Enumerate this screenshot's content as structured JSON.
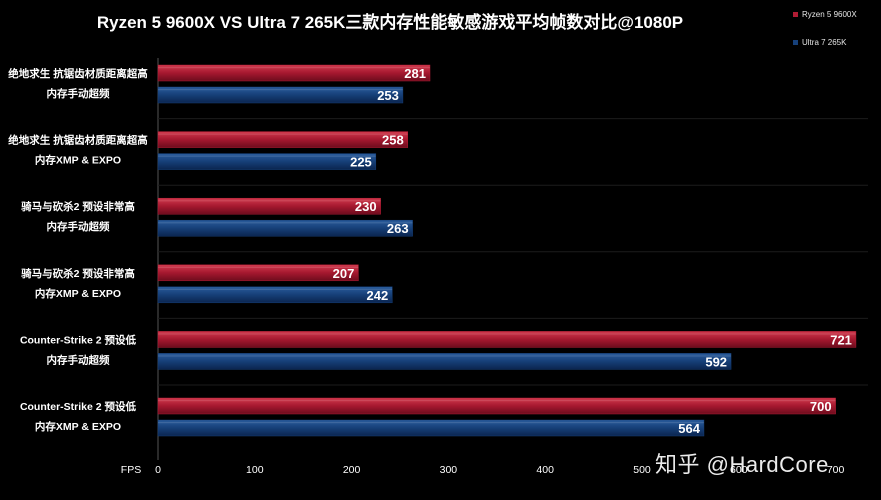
{
  "colors": {
    "series1": "#b01c34",
    "series2": "#16407a",
    "background": "#000000"
  },
  "watermark": "知乎 @HardCore",
  "chart_data": {
    "type": "bar",
    "orientation": "horizontal",
    "title": "Ryzen 5 9600X VS Ultra 7 265K三款内存性能敏感游戏平均帧数对比@1080P",
    "xlabel": "FPS",
    "xlim": [
      0,
      700
    ],
    "xticks": [
      0,
      100,
      200,
      300,
      400,
      500,
      600,
      700
    ],
    "legend_position": "top-right",
    "categories": [
      [
        "绝地求生 抗锯齿材质距离超高",
        "内存手动超频"
      ],
      [
        "绝地求生 抗锯齿材质距离超高",
        "内存XMP & EXPO"
      ],
      [
        "骑马与砍杀2 预设非常高",
        "内存手动超频"
      ],
      [
        "骑马与砍杀2 预设非常高",
        "内存XMP & EXPO"
      ],
      [
        "Counter-Strike 2 预设低",
        "内存手动超频"
      ],
      [
        "Counter-Strike 2 预设低",
        "内存XMP & EXPO"
      ]
    ],
    "series": [
      {
        "name": "Ryzen 5 9600X",
        "values": [
          281,
          258,
          230,
          207,
          721,
          700
        ]
      },
      {
        "name": "Ultra 7 265K",
        "values": [
          253,
          225,
          263,
          242,
          592,
          564
        ]
      }
    ]
  }
}
